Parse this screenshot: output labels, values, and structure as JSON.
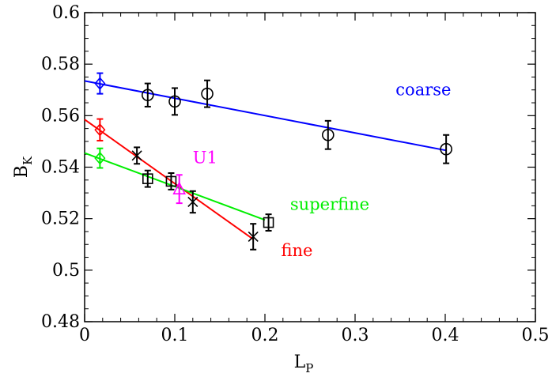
{
  "chart_data": {
    "type": "scatter",
    "xlabel": "L",
    "xlabel_sub": "P",
    "ylabel": "B",
    "ylabel_sub": "K",
    "xlim": [
      0,
      0.5
    ],
    "ylim": [
      0.48,
      0.6
    ],
    "xticks": [
      0,
      0.1,
      0.2,
      0.3,
      0.4,
      0.5
    ],
    "xtick_labels": [
      "0",
      "0.1",
      "0.2",
      "0.3",
      "0.4",
      "0.5"
    ],
    "yticks": [
      0.48,
      0.5,
      0.52,
      0.54,
      0.56,
      0.58,
      0.6
    ],
    "ytick_labels": [
      "0.48",
      "0.5",
      "0.52",
      "0.54",
      "0.56",
      "0.58",
      "0.6"
    ],
    "grid": false,
    "series": [
      {
        "name": "coarse",
        "color": "#0000ff",
        "marker": "circle",
        "marker_color": "#000000",
        "points": [
          {
            "x": 0.07,
            "y": 0.568,
            "err": 0.0045
          },
          {
            "x": 0.1,
            "y": 0.5655,
            "err": 0.0052
          },
          {
            "x": 0.136,
            "y": 0.5685,
            "err": 0.0052
          },
          {
            "x": 0.27,
            "y": 0.5525,
            "err": 0.0055
          },
          {
            "x": 0.401,
            "y": 0.547,
            "err": 0.0055
          }
        ],
        "extrapolated": {
          "x": 0.017,
          "y": 0.5725,
          "err": 0.004,
          "marker": "diamond"
        },
        "fit": {
          "x": [
            0,
            0.401
          ],
          "y": [
            0.5735,
            0.5465
          ]
        }
      },
      {
        "name": "fine",
        "color": "#ff0000",
        "marker": "cross",
        "marker_color": "#000000",
        "points": [
          {
            "x": 0.058,
            "y": 0.5445,
            "err": 0.0032
          },
          {
            "x": 0.12,
            "y": 0.5265,
            "err": 0.0042
          },
          {
            "x": 0.187,
            "y": 0.513,
            "err": 0.005
          }
        ],
        "extrapolated": {
          "x": 0.017,
          "y": 0.5545,
          "err": 0.0042,
          "marker": "diamond"
        },
        "fit": {
          "x": [
            0,
            0.187
          ],
          "y": [
            0.5585,
            0.512
          ]
        }
      },
      {
        "name": "superfine",
        "color": "#00ee00",
        "marker": "square",
        "marker_color": "#000000",
        "points": [
          {
            "x": 0.07,
            "y": 0.5355,
            "err": 0.0032
          },
          {
            "x": 0.096,
            "y": 0.5345,
            "err": 0.0032
          },
          {
            "x": 0.204,
            "y": 0.5185,
            "err": 0.0032
          }
        ],
        "extrapolated": {
          "x": 0.017,
          "y": 0.5435,
          "err": 0.0038,
          "marker": "diamond"
        },
        "fit": {
          "x": [
            0,
            0.2
          ],
          "y": [
            0.5455,
            0.5195
          ]
        }
      },
      {
        "name": "U1",
        "color": "#ff00ff",
        "marker": "triangle",
        "marker_color": "#ff00ff",
        "points": [
          {
            "x": 0.105,
            "y": 0.5315,
            "err": 0.0055
          }
        ]
      }
    ],
    "annotations": [
      {
        "text": "coarse",
        "x": 0.345,
        "y": 0.568,
        "color": "#0000ff"
      },
      {
        "text": "U1",
        "x": 0.12,
        "y": 0.5415,
        "color": "#ff00ff"
      },
      {
        "text": "superfine",
        "x": 0.228,
        "y": 0.5235,
        "color": "#00ee00"
      },
      {
        "text": "fine",
        "x": 0.218,
        "y": 0.5055,
        "color": "#ff0000"
      }
    ]
  }
}
